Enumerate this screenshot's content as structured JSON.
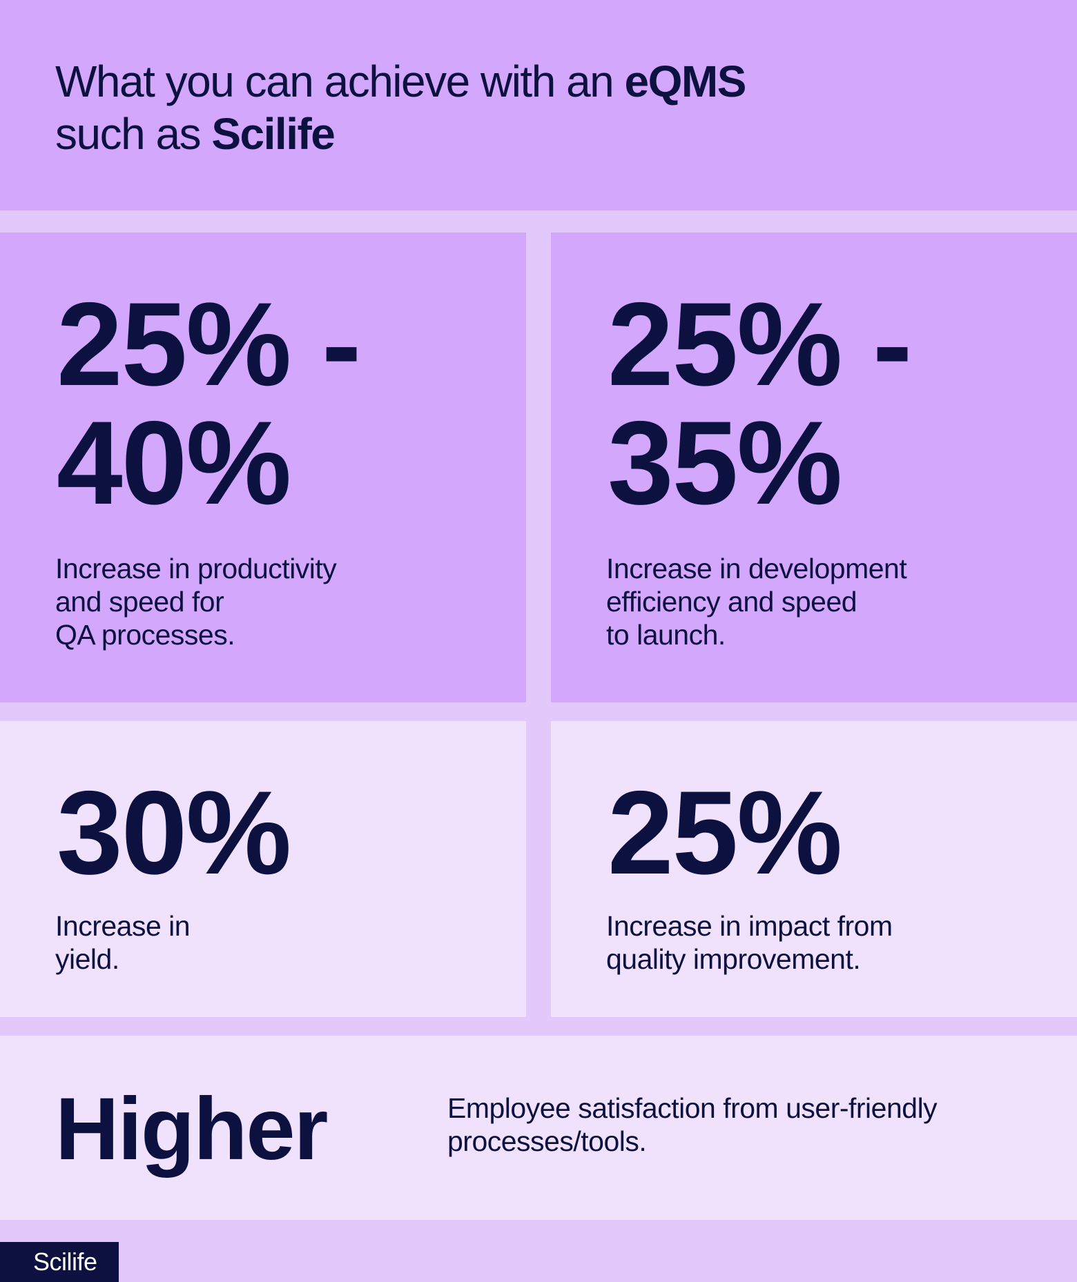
{
  "header": {
    "line1_regular": "What you can achieve with an ",
    "line1_bold": "eQMS",
    "line2_regular": "such as ",
    "line2_bold": "Scilife"
  },
  "cards": [
    {
      "stat_line1": "25% -",
      "stat_line2": "40%",
      "description": "Increase in productivity\nand speed for\nQA processes."
    },
    {
      "stat_line1": "25% -",
      "stat_line2": "35%",
      "description": "Increase in development\nefficiency and speed\nto launch."
    },
    {
      "stat_line1": "30%",
      "description": "Increase in\nyield."
    },
    {
      "stat_line1": "25%",
      "description": "Increase in impact from\nquality improvement."
    }
  ],
  "higher": {
    "label": "Higher",
    "description": "Employee satisfaction from user-friendly\nprocesses/tools."
  },
  "logo": {
    "text": "Scilife"
  },
  "colors": {
    "background": "#e2c8fb",
    "card_dark": "#d3a7fc",
    "card_light": "#f0e2fd",
    "text": "#0d1140"
  }
}
